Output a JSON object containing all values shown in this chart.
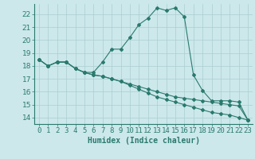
{
  "xlabel": "Humidex (Indice chaleur)",
  "bg_color": "#cce8eb",
  "grid_color": "#aacdd2",
  "line_color": "#2a7a6e",
  "xlim": [
    -0.5,
    23.5
  ],
  "ylim": [
    13.5,
    22.8
  ],
  "xticks": [
    0,
    1,
    2,
    3,
    4,
    5,
    6,
    7,
    8,
    9,
    10,
    11,
    12,
    13,
    14,
    15,
    16,
    17,
    18,
    19,
    20,
    21,
    22,
    23
  ],
  "yticks": [
    14,
    15,
    16,
    17,
    18,
    19,
    20,
    21,
    22
  ],
  "line1_x": [
    0,
    1,
    2,
    3,
    4,
    5,
    6,
    7,
    8,
    9,
    10,
    11,
    12,
    13,
    14,
    15,
    16,
    17,
    18,
    19,
    20,
    21,
    22,
    23
  ],
  "line1_y": [
    18.5,
    18.0,
    18.3,
    18.3,
    17.8,
    17.5,
    17.5,
    18.3,
    19.3,
    19.3,
    20.2,
    21.2,
    21.7,
    22.5,
    22.3,
    22.5,
    21.8,
    17.3,
    16.1,
    15.3,
    15.3,
    15.3,
    15.2,
    13.8
  ],
  "line2_x": [
    0,
    1,
    2,
    3,
    4,
    5,
    6,
    7,
    8,
    9,
    10,
    11,
    12,
    13,
    14,
    15,
    16,
    17,
    18,
    19,
    20,
    21,
    22,
    23
  ],
  "line2_y": [
    18.5,
    18.0,
    18.3,
    18.3,
    17.8,
    17.5,
    17.3,
    17.2,
    17.0,
    16.8,
    16.6,
    16.4,
    16.2,
    16.0,
    15.8,
    15.6,
    15.5,
    15.4,
    15.3,
    15.2,
    15.1,
    15.0,
    14.9,
    13.8
  ],
  "line3_x": [
    0,
    1,
    2,
    3,
    4,
    5,
    6,
    7,
    8,
    9,
    10,
    11,
    12,
    13,
    14,
    15,
    16,
    17,
    18,
    19,
    20,
    21,
    22,
    23
  ],
  "line3_y": [
    18.5,
    18.0,
    18.3,
    18.3,
    17.8,
    17.5,
    17.3,
    17.2,
    17.0,
    16.8,
    16.5,
    16.2,
    15.9,
    15.6,
    15.4,
    15.2,
    15.0,
    14.8,
    14.6,
    14.4,
    14.3,
    14.2,
    14.0,
    13.8
  ],
  "tick_fontsize": 6.5,
  "xlabel_fontsize": 7.0
}
